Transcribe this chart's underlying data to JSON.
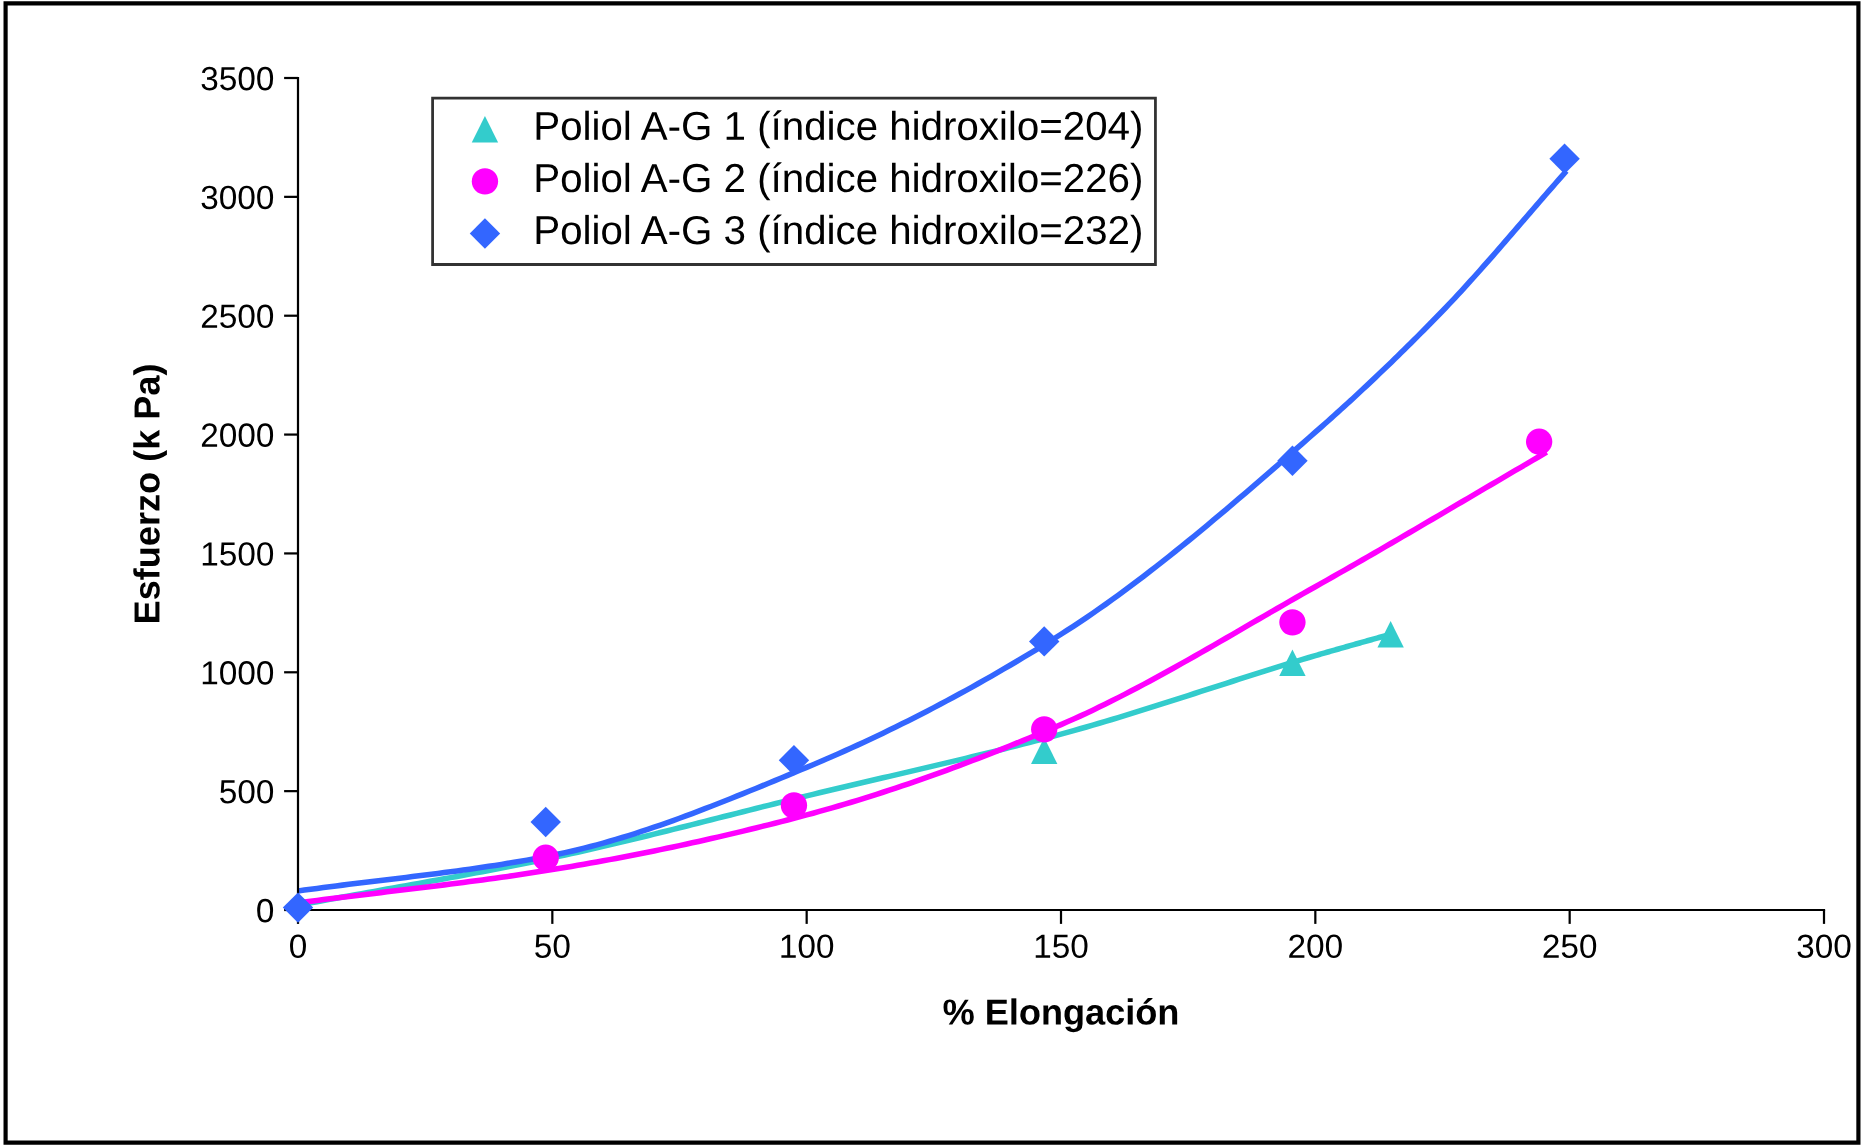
{
  "chart_data": {
    "type": "scatter",
    "xlabel": "% Elongación",
    "ylabel": "Esfuerzo (k Pa)",
    "xlim": [
      0,
      300
    ],
    "xticks": [
      0,
      50,
      100,
      150,
      200,
      250,
      300
    ],
    "ylim": [
      0,
      3500
    ],
    "yticks": [
      0,
      500,
      1000,
      1500,
      2000,
      2500,
      3000,
      3500
    ],
    "grid": false,
    "legend": "top left",
    "series": [
      {
        "name": "Poliol A-G 1 (índice hidroxilo=204)",
        "color": "#33cccc",
        "marker": "triangle",
        "x": [
          146.7,
          195.5,
          214.8
        ],
        "values": [
          670,
          1040,
          1160
        ]
      },
      {
        "name": "Poliol A-G 2 (índice hidroxilo=226)",
        "color": "#ff00ff",
        "marker": "circle",
        "x": [
          48.7,
          97.5,
          146.7,
          195.5,
          244
        ],
        "values": [
          220,
          440,
          760,
          1210,
          1970
        ]
      },
      {
        "name": "Poliol A-G 3 (índice hidroxilo=232)",
        "color": "#3366ff",
        "marker": "diamond",
        "x": [
          0,
          48.7,
          97.5,
          146.7,
          195.5,
          249
        ],
        "values": [
          10,
          370,
          630,
          1130,
          1890,
          3160
        ]
      },
      {
        "type": "line",
        "color": "#33cccc",
        "marker": "none",
        "x": [
          0,
          50,
          100,
          150,
          200,
          214.8
        ],
        "values": [
          20,
          220,
          480,
          740,
          1070,
          1160
        ]
      },
      {
        "type": "line",
        "color": "#ff00ff",
        "marker": "none",
        "x": [
          0,
          50,
          100,
          150,
          200,
          245
        ],
        "values": [
          30,
          170,
          400,
          780,
          1360,
          1920
        ]
      },
      {
        "type": "line",
        "color": "#3366ff",
        "marker": "none",
        "x": [
          0,
          50,
          100,
          150,
          200,
          225,
          249
        ],
        "values": [
          80,
          230,
          600,
          1160,
          2010,
          2520,
          3100
        ]
      }
    ]
  }
}
